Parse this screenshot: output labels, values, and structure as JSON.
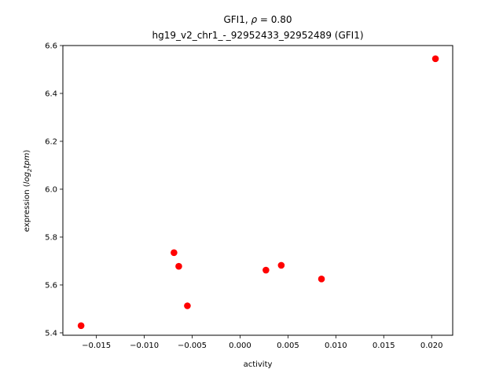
{
  "chart_data": {
    "type": "scatter",
    "title_line1_prefix": "GFI1, ",
    "title_line1_rho": "ρ",
    "title_line1_suffix": " = 0.80",
    "title_line2": "hg19_v2_chr1_-_92952433_92952489 (GFI1)",
    "xlabel": "activity",
    "ylabel_prefix": "expression (",
    "ylabel_log": "log",
    "ylabel_sub": "2",
    "ylabel_tpm": "tpm",
    "ylabel_suffix": ")",
    "xlim": [
      -0.0185,
      0.0222
    ],
    "ylim": [
      5.39,
      6.6
    ],
    "xticks": [
      -0.015,
      -0.01,
      -0.005,
      0.0,
      0.005,
      0.01,
      0.015,
      0.02
    ],
    "xtick_labels": [
      "−0.015",
      "−0.010",
      "−0.005",
      "0.000",
      "0.005",
      "0.010",
      "0.015",
      "0.020"
    ],
    "yticks": [
      5.4,
      5.6,
      5.8,
      6.0,
      6.2,
      6.4,
      6.6
    ],
    "ytick_labels": [
      "5.4",
      "5.6",
      "5.8",
      "6.0",
      "6.2",
      "6.4",
      "6.6"
    ],
    "marker_color": "#ff0000",
    "grid": false,
    "points": [
      {
        "x": -0.0166,
        "y": 5.43
      },
      {
        "x": -0.0069,
        "y": 5.735
      },
      {
        "x": -0.0064,
        "y": 5.678
      },
      {
        "x": -0.0055,
        "y": 5.513
      },
      {
        "x": 0.0027,
        "y": 5.662
      },
      {
        "x": 0.0043,
        "y": 5.682
      },
      {
        "x": 0.0085,
        "y": 5.625
      },
      {
        "x": 0.0204,
        "y": 6.545
      }
    ]
  }
}
